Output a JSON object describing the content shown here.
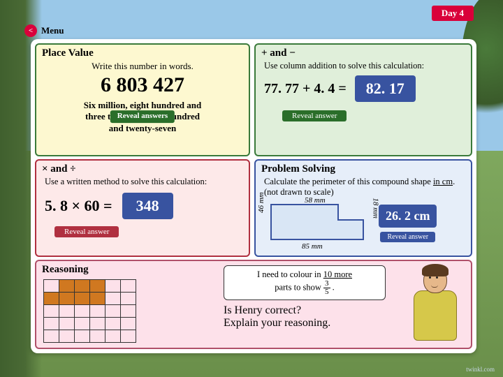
{
  "header": {
    "day_label": "Day 4",
    "menu_label": "Menu"
  },
  "place_value": {
    "title": "Place Value",
    "prompt": "Write this number in words.",
    "number": "6 803 427",
    "answer_l1": "Six million, eight hundred and",
    "answer_l2": "three thousand, four hundred",
    "answer_l3": "and twenty-seven",
    "button": "Reveal answers"
  },
  "plus_minus": {
    "title": "+ and −",
    "prompt": "Use column addition to solve this calculation:",
    "expression": "77. 77 + 4. 4 =",
    "answer": "82. 17",
    "button": "Reveal answer"
  },
  "mult_div": {
    "title": "× and ÷",
    "prompt": "Use a written method to solve this calculation:",
    "expression": "5. 8 × 60 =",
    "answer": "348",
    "button": "Reveal answer"
  },
  "problem_solving": {
    "title": "Problem Solving",
    "prompt_pre": "Calculate the perimeter of this compound shape ",
    "prompt_ul": "in cm",
    "prompt_post": ". (not drawn to scale)",
    "dims": {
      "left": "46 mm",
      "top": "58 mm",
      "right": "18 mm",
      "bottom": "85 mm"
    },
    "answer": "26. 2 cm",
    "button": "Reveal answer",
    "shape_fill": "#d9e6f5",
    "shape_stroke": "#3853a0"
  },
  "reasoning": {
    "title": "Reasoning",
    "grid": {
      "rows": 5,
      "cols": 6,
      "filled_cells": [
        [
          0,
          1
        ],
        [
          0,
          2
        ],
        [
          0,
          3
        ],
        [
          1,
          0
        ],
        [
          1,
          1
        ],
        [
          1,
          2
        ],
        [
          1,
          3
        ]
      ],
      "fill_color": "#d07820"
    },
    "speech_pre": "I need to colour in ",
    "speech_mid": "10 more",
    "speech_post1": " parts to show ",
    "frac_n": "3",
    "frac_d": "5",
    "speech_post2": " .",
    "question_l1": "Is Henry correct?",
    "question_l2": "Explain your reasoning."
  },
  "footer": {
    "logo": "twinkl.com"
  }
}
